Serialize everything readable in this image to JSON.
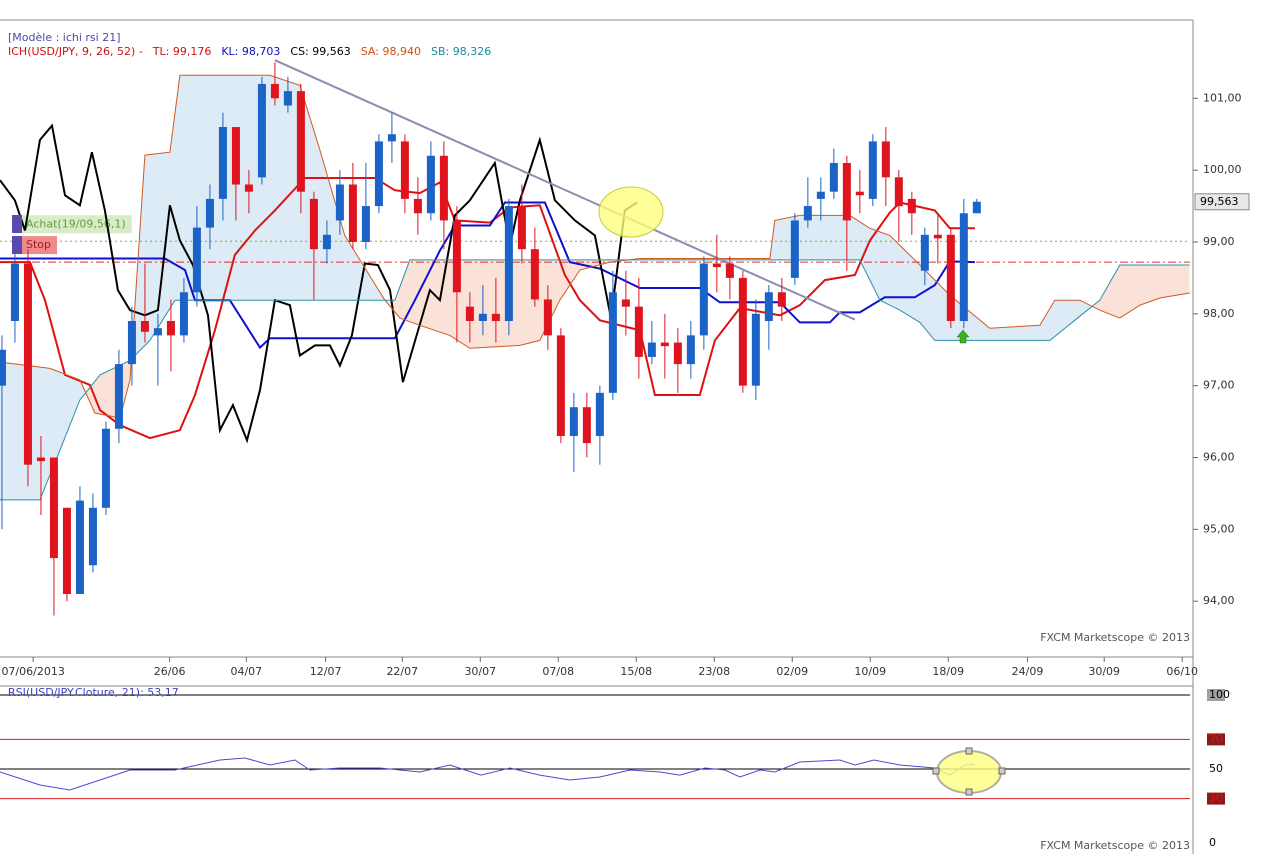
{
  "chart_data": [
    {
      "type": "candlestick",
      "model_label": "[Modèle : ichi rsi 21]",
      "header": [
        {
          "text": "ICH(USD/JPY, 9, 26, 52) -",
          "color": "#d01010"
        },
        {
          "text": "TL: 99,176",
          "color": "#d01010"
        },
        {
          "text": "KL: 98,703",
          "color": "#1010c0"
        },
        {
          "text": "CS: 99,563",
          "color": "#000000"
        },
        {
          "text": "SA: 98,940",
          "color": "#d05010"
        },
        {
          "text": "SB: 98,326",
          "color": "#1a8aa0"
        }
      ],
      "x": [
        0,
        1,
        2,
        3,
        4,
        5,
        6,
        7,
        8,
        9,
        10,
        11,
        12,
        13,
        14,
        15,
        16,
        17,
        18,
        19,
        20,
        21,
        22,
        23,
        24,
        25,
        26,
        27,
        28,
        29,
        30,
        31,
        32,
        33,
        34,
        35,
        36,
        37,
        38,
        39,
        40,
        41,
        42,
        43,
        44,
        45,
        46,
        47,
        48,
        49,
        50,
        51,
        52,
        53,
        54,
        55,
        56,
        57,
        58,
        59,
        60,
        61,
        62,
        63,
        64,
        65,
        66,
        67,
        68,
        69,
        70,
        71,
        72,
        73,
        74,
        75
      ],
      "open": [
        97.0,
        97.9,
        98.7,
        96.0,
        96.0,
        95.3,
        94.1,
        94.5,
        95.3,
        96.4,
        97.3,
        97.9,
        97.7,
        97.9,
        97.7,
        98.3,
        99.2,
        99.6,
        100.6,
        99.8,
        99.9,
        101.2,
        100.9,
        101.1,
        99.6,
        98.9,
        99.3,
        99.8,
        99.0,
        99.5,
        100.4,
        100.4,
        99.6,
        99.4,
        100.2,
        99.3,
        98.1,
        97.9,
        98.0,
        97.9,
        99.5,
        98.9,
        98.2,
        97.7,
        96.3,
        96.7,
        96.3,
        96.9,
        98.2,
        98.1,
        97.4,
        97.6,
        97.6,
        97.3,
        97.7,
        98.7,
        98.7,
        98.5,
        97.0,
        97.9,
        98.3,
        98.5,
        99.3,
        99.6,
        99.7,
        100.1,
        99.7,
        99.6,
        100.4,
        99.9,
        99.6,
        98.6,
        99.1,
        99.1,
        97.9,
        99.4
      ],
      "high": [
        97.7,
        98.9,
        98.9,
        96.3,
        96.0,
        95.3,
        95.6,
        95.5,
        96.5,
        97.5,
        98.1,
        98.7,
        98.0,
        98.2,
        98.5,
        99.5,
        99.8,
        100.8,
        100.6,
        100.0,
        101.3,
        101.5,
        101.3,
        101.2,
        99.7,
        99.3,
        100.0,
        100.1,
        100.1,
        100.5,
        100.8,
        100.5,
        99.9,
        100.4,
        100.4,
        99.5,
        98.3,
        98.4,
        98.5,
        99.6,
        99.8,
        99.2,
        98.4,
        97.8,
        96.9,
        96.9,
        97.0,
        98.6,
        98.6,
        98.5,
        97.9,
        98.0,
        97.8,
        97.9,
        98.8,
        99.1,
        98.8,
        98.6,
        98.2,
        98.4,
        98.5,
        99.4,
        99.9,
        99.9,
        100.3,
        100.2,
        100.0,
        100.5,
        100.6,
        100.0,
        99.7,
        99.2,
        99.4,
        99.2,
        99.6,
        99.6
      ],
      "low": [
        95.0,
        97.6,
        95.6,
        95.2,
        93.8,
        94.0,
        94.1,
        94.4,
        95.2,
        96.2,
        97.0,
        97.6,
        97.0,
        97.2,
        97.6,
        98.1,
        98.9,
        99.3,
        99.3,
        99.4,
        99.8,
        100.9,
        100.8,
        99.4,
        98.2,
        98.7,
        99.1,
        98.9,
        98.9,
        99.4,
        100.1,
        99.4,
        99.1,
        99.3,
        98.9,
        97.6,
        97.6,
        97.7,
        97.6,
        97.7,
        98.7,
        98.1,
        97.5,
        96.2,
        95.8,
        96.0,
        95.9,
        96.8,
        97.7,
        97.1,
        97.3,
        97.1,
        96.9,
        97.1,
        97.5,
        98.3,
        98.2,
        96.9,
        96.8,
        97.5,
        97.9,
        98.4,
        99.2,
        99.3,
        99.6,
        98.6,
        99.4,
        99.5,
        99.5,
        99.0,
        99.1,
        98.4,
        98.7,
        97.8,
        97.8,
        99.4
      ],
      "close": [
        97.5,
        98.7,
        95.9,
        95.95,
        94.6,
        94.1,
        95.4,
        95.3,
        96.4,
        97.3,
        97.9,
        97.75,
        97.8,
        97.7,
        98.3,
        99.2,
        99.6,
        100.6,
        99.8,
        99.7,
        101.2,
        101.0,
        101.1,
        99.7,
        98.9,
        99.1,
        99.8,
        99.0,
        99.5,
        100.4,
        100.5,
        99.6,
        99.4,
        100.2,
        99.3,
        98.3,
        97.9,
        98.0,
        97.9,
        99.5,
        98.9,
        98.2,
        97.7,
        96.3,
        96.7,
        96.2,
        96.9,
        98.3,
        98.1,
        97.4,
        97.6,
        97.55,
        97.3,
        97.7,
        98.7,
        98.65,
        98.5,
        97.0,
        98.0,
        98.3,
        98.1,
        99.3,
        99.5,
        99.7,
        100.1,
        99.3,
        99.65,
        100.4,
        99.9,
        99.5,
        99.4,
        99.1,
        99.05,
        97.9,
        99.4,
        99.56
      ],
      "up_color": "#1b63c6",
      "down_color": "#e0141e",
      "xlim": [
        -0.15,
        91.4
      ],
      "xticks": [
        {
          "value": 2.4,
          "label": "07/06/2013"
        },
        {
          "value": 12.9,
          "label": "26/06"
        },
        {
          "value": 18.8,
          "label": "04/07"
        },
        {
          "value": 24.9,
          "label": "12/07"
        },
        {
          "value": 30.8,
          "label": "22/07"
        },
        {
          "value": 36.8,
          "label": "30/07"
        },
        {
          "value": 42.8,
          "label": "07/08"
        },
        {
          "value": 48.8,
          "label": "15/08"
        },
        {
          "value": 54.8,
          "label": "23/08"
        },
        {
          "value": 60.8,
          "label": "02/09"
        },
        {
          "value": 66.8,
          "label": "10/09"
        },
        {
          "value": 72.8,
          "label": "18/09"
        },
        {
          "value": 78.9,
          "label": "24/09"
        },
        {
          "value": 84.8,
          "label": "30/09"
        },
        {
          "value": 90.8,
          "label": "06/10"
        }
      ],
      "ylim": [
        93.39,
        102.09
      ],
      "yticks": [
        {
          "value": 94,
          "label": "94,00"
        },
        {
          "value": 95,
          "label": "95,00"
        },
        {
          "value": 96,
          "label": "96,00"
        },
        {
          "value": 97,
          "label": "97,00"
        },
        {
          "value": 98,
          "label": "98,00"
        },
        {
          "value": 99,
          "label": "99,00"
        },
        {
          "value": 100,
          "label": "100,00"
        },
        {
          "value": 101,
          "label": "101,00"
        }
      ],
      "lines": [
        {
          "color": "#e01010",
          "width": 2,
          "x": [
            -0.15,
            2.15,
            3.31,
            4.85,
            6.77,
            7.54,
            9.08,
            11.38,
            13.69,
            14.85,
            16.38,
            17.92,
            19.46,
            21,
            23.31,
            28.69,
            30.23,
            32.15,
            33.69,
            34.85,
            37.54,
            39.08,
            41.38,
            43.31,
            44.46,
            46,
            49.08,
            50.23,
            53.69,
            54.85,
            56.77,
            59.85,
            61.38,
            63.31,
            65.62,
            66.77,
            68.31,
            69.08,
            71.77,
            72.92,
            74.85
          ],
          "values": [
            98.72,
            98.72,
            98.19,
            97.15,
            97.01,
            96.66,
            96.45,
            96.27,
            96.38,
            96.87,
            97.77,
            98.82,
            99.16,
            99.44,
            99.89,
            99.89,
            99.72,
            99.68,
            99.83,
            99.3,
            99.27,
            99.48,
            99.51,
            98.54,
            98.19,
            97.91,
            97.77,
            96.87,
            96.87,
            97.63,
            98.08,
            97.98,
            98.12,
            98.47,
            98.54,
            99.02,
            99.41,
            99.55,
            99.44,
            99.19,
            99.19
          ]
        },
        {
          "color": "#1010d0",
          "width": 2,
          "x": [
            -0.15,
            12.54,
            14.08,
            14.85,
            17.54,
            19.85,
            20.62,
            30.23,
            31.77,
            33.69,
            34.85,
            37.54,
            38.69,
            41.77,
            43.69,
            46,
            49.08,
            53.69,
            55.23,
            59.85,
            61.38,
            63.69,
            64.46,
            66,
            67.92,
            70.23,
            71.77,
            72.92,
            74.85
          ],
          "values": [
            98.77,
            98.77,
            98.61,
            98.19,
            98.19,
            97.53,
            97.66,
            97.66,
            98.19,
            98.88,
            99.23,
            99.23,
            99.55,
            99.55,
            98.72,
            98.63,
            98.36,
            98.36,
            98.16,
            98.16,
            97.88,
            97.88,
            98.02,
            98.02,
            98.23,
            98.23,
            98.4,
            98.73,
            98.72
          ]
        },
        {
          "color": "#000000",
          "width": 2,
          "x": [
            -0.15,
            1,
            1.77,
            2.92,
            3.85,
            4.85,
            6,
            6.92,
            7.92,
            8.92,
            9.85,
            11,
            12,
            12.92,
            13.69,
            14.69,
            15.85,
            16.77,
            17.77,
            18.85,
            19.85,
            21,
            22.15,
            22.92,
            24.08,
            25.23,
            26,
            26.92,
            27.92,
            28.92,
            29.85,
            30.85,
            32.92,
            33.69,
            34.85,
            36,
            37.92,
            39.08,
            39.85,
            41.38,
            42.54,
            44.08,
            45.62,
            46.85,
            47.92,
            48.85
          ],
          "values": [
            99.86,
            99.58,
            99.16,
            100.42,
            100.62,
            99.65,
            99.51,
            100.25,
            99.44,
            98.33,
            98.05,
            97.98,
            98.05,
            99.51,
            99.02,
            98.68,
            97.98,
            96.38,
            96.73,
            96.24,
            96.94,
            98.19,
            98.12,
            97.42,
            97.56,
            97.56,
            97.28,
            97.7,
            98.7,
            98.68,
            98.33,
            97.05,
            98.33,
            98.19,
            99.37,
            99.58,
            100.1,
            98.95,
            99.58,
            100.42,
            99.58,
            99.3,
            99.09,
            97.94,
            99.44,
            99.55
          ]
        },
        {
          "color": "#d05a20",
          "width": 1,
          "x": [
            -0.15,
            3.69,
            6,
            7.15,
            9.08,
            9.85,
            11,
            12.92,
            13.69,
            20.62,
            22.92,
            24.46,
            26.38,
            29.46,
            30.62,
            32.15,
            34.46,
            36,
            39.85,
            41.38,
            42.92,
            44.46,
            46.77,
            49.08,
            59.08,
            59.46,
            61.38,
            65.23,
            66.77,
            68.31,
            70.62,
            72.92,
            76,
            79.85,
            81,
            82.92,
            84.46,
            86,
            87.54,
            89.08,
            91.38
          ],
          "values": [
            97.33,
            97.24,
            97.08,
            96.62,
            96.55,
            97.08,
            100.21,
            100.25,
            101.32,
            101.32,
            101.18,
            100.28,
            99.09,
            98.19,
            97.94,
            97.84,
            97.7,
            97.52,
            97.56,
            97.63,
            98.19,
            98.61,
            98.72,
            98.77,
            98.77,
            99.3,
            99.37,
            99.37,
            99.19,
            99.09,
            98.68,
            98.26,
            97.8,
            97.84,
            98.19,
            98.19,
            98.05,
            97.94,
            98.12,
            98.22,
            98.29
          ]
        },
        {
          "color": "#2a90a8",
          "width": 1,
          "x": [
            -0.15,
            2.92,
            4.46,
            6,
            7.54,
            9.85,
            11.38,
            13.31,
            30.23,
            31.38,
            66,
            67.54,
            69.08,
            70.62,
            71.77,
            80.62,
            82.54,
            84.46,
            86,
            91.38
          ],
          "values": [
            95.41,
            95.41,
            96.1,
            96.8,
            97.15,
            97.35,
            97.63,
            98.19,
            98.19,
            98.75,
            98.75,
            98.19,
            98.05,
            97.88,
            97.63,
            97.63,
            97.91,
            98.19,
            98.68,
            98.68
          ]
        }
      ],
      "cloud_colors": {
        "up": "#dcebf6",
        "down": "#fbe2d8"
      },
      "trendline": {
        "x": [
          21,
          65.62
        ],
        "values": [
          101.53,
          97.92
        ],
        "color": "#8c8cb0"
      },
      "levels": [
        {
          "label": "Achat(19/09,56,1)",
          "value": 99.01,
          "color": "#8aaa40",
          "box": "#d8ecc8",
          "text_color": "#6a9a40"
        },
        {
          "label": "Stop",
          "value": 98.72,
          "color": "#e03030",
          "box": "#f08a8a",
          "text_color": "#a02020"
        }
      ],
      "last_price_label": "99,563",
      "watermark": "FXCM Marketscope © 2013"
    },
    {
      "type": "line",
      "label": "RSI(USD/JPY.Cloture, 21): 53,17",
      "color": "#4a4ad0",
      "x": [
        -0.15,
        2.92,
        5.23,
        9.85,
        13.31,
        16.77,
        18.69,
        20.62,
        22.54,
        23.69,
        26,
        29.08,
        32.15,
        34.46,
        36.85,
        39.08,
        41.38,
        43.69,
        46,
        48.31,
        50.62,
        52.15,
        54.08,
        55.62,
        56.77,
        58.31,
        59.46,
        61.38,
        64.46,
        65.62,
        67.08,
        69.08,
        71.77,
        72.92,
        74.08,
        74.85
      ],
      "values": [
        48.0,
        39.2,
        35.8,
        49.3,
        49.3,
        56.1,
        57.4,
        52.7,
        56.1,
        49.3,
        50.7,
        50.7,
        48.0,
        52.7,
        45.9,
        50.7,
        45.9,
        42.6,
        44.6,
        49.3,
        48.0,
        45.9,
        50.7,
        49.3,
        44.6,
        49.3,
        48.0,
        54.7,
        56.1,
        52.7,
        56.1,
        52.7,
        50.7,
        45.9,
        52.7,
        53.17
      ],
      "xlim": [
        -0.15,
        91.4
      ],
      "ylim": [
        0,
        100
      ],
      "yticks": [
        0,
        30,
        50,
        70,
        100
      ],
      "tick_colors": [
        "#000000",
        "#e01010",
        "#000000",
        "#e01010",
        "#000000"
      ],
      "tick_boxes": [
        "#ffffff",
        "#8b1a1a",
        "#ffffff",
        "#8b1a1a",
        "#a0a0a0"
      ],
      "watermark": "FXCM Marketscope © 2013"
    }
  ]
}
